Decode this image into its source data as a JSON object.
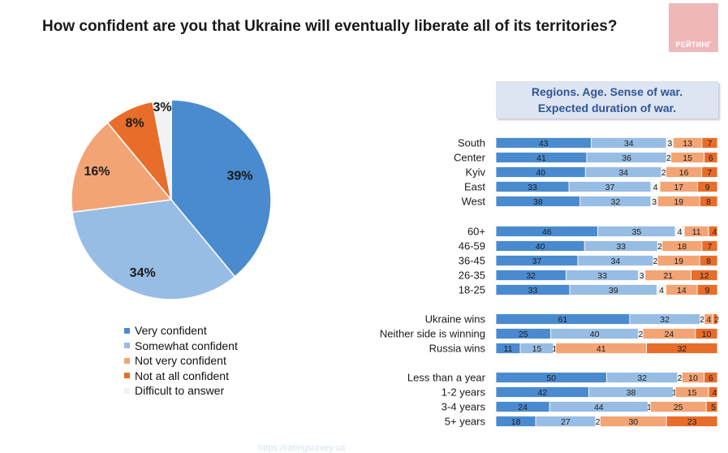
{
  "title": "How confident are you that Ukraine will eventually liberate all of its territories?",
  "logo_text": "РЕЙТИНГ",
  "header": {
    "line1": "Regions. Age. Sense of war.",
    "line2": "Expected duration of war."
  },
  "watermark": "https://ratingsurvey.ua",
  "colors": {
    "very": "#4a8bd0",
    "somewhat": "#98bde4",
    "not_very": "#f3a474",
    "not_at_all": "#e86d2a",
    "difficult": "#f2f2f2"
  },
  "chart_data": [
    {
      "type": "pie",
      "labels": [
        "Very confident",
        "Somewhat confident",
        "Not very confident",
        "Not at all confident",
        "Difficult to answer"
      ],
      "values": [
        39,
        34,
        16,
        8,
        3
      ],
      "value_labels": [
        "39%",
        "34%",
        "16%",
        "8%",
        "3%"
      ],
      "legend_position": "bottom"
    },
    {
      "type": "bar",
      "orientation": "horizontal-stacked-100",
      "series_names": [
        "Very confident",
        "Somewhat confident",
        "Difficult to answer",
        "Not very confident",
        "Not at all confident"
      ],
      "groups": [
        {
          "rows": [
            {
              "label": "South",
              "values": [
                43,
                34,
                3,
                13,
                7
              ]
            },
            {
              "label": "Center",
              "values": [
                41,
                36,
                2,
                15,
                6
              ]
            },
            {
              "label": "Kyiv",
              "values": [
                40,
                34,
                2,
                16,
                7
              ]
            },
            {
              "label": "East",
              "values": [
                33,
                37,
                4,
                17,
                9
              ]
            },
            {
              "label": "West",
              "values": [
                38,
                32,
                3,
                19,
                8
              ]
            }
          ]
        },
        {
          "rows": [
            {
              "label": "60+",
              "values": [
                46,
                35,
                4,
                11,
                4
              ]
            },
            {
              "label": "46-59",
              "values": [
                40,
                33,
                2,
                18,
                7
              ]
            },
            {
              "label": "36-45",
              "values": [
                37,
                34,
                2,
                19,
                8
              ]
            },
            {
              "label": "26-35",
              "values": [
                32,
                33,
                3,
                21,
                12
              ]
            },
            {
              "label": "18-25",
              "values": [
                33,
                39,
                4,
                14,
                9
              ]
            }
          ]
        },
        {
          "rows": [
            {
              "label": "Ukraine wins",
              "values": [
                61,
                32,
                2,
                4,
                2
              ]
            },
            {
              "label": "Neither side is winning",
              "values": [
                25,
                40,
                2,
                24,
                10
              ]
            },
            {
              "label": "Russia wins",
              "values": [
                11,
                15,
                1,
                41,
                32
              ]
            }
          ]
        },
        {
          "rows": [
            {
              "label": "Less than a year",
              "values": [
                50,
                32,
                2,
                10,
                6
              ]
            },
            {
              "label": "1-2 years",
              "values": [
                42,
                38,
                1,
                15,
                4
              ]
            },
            {
              "label": "3-4 years",
              "values": [
                24,
                44,
                1,
                25,
                5
              ]
            },
            {
              "label": "5+ years",
              "values": [
                18,
                27,
                2,
                30,
                23
              ]
            }
          ]
        }
      ]
    }
  ]
}
